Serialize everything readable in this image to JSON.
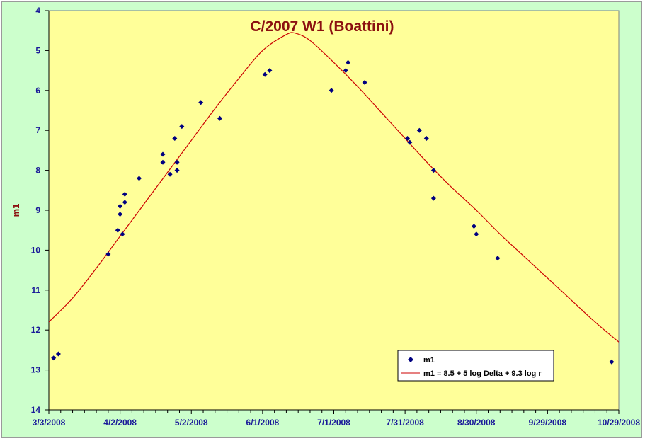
{
  "chart_data": {
    "type": "scatter",
    "title": "C/2007 W1 (Boattini)",
    "ylabel": "m1",
    "xlabel": "",
    "y_inverted": true,
    "ylim": [
      4,
      14
    ],
    "yticks": [
      4,
      5,
      6,
      7,
      8,
      9,
      10,
      11,
      12,
      13,
      14
    ],
    "xlim": [
      "3/3/2008",
      "10/29/2008"
    ],
    "xtick_labels": [
      "3/3/2008",
      "4/2/2008",
      "5/2/2008",
      "6/1/2008",
      "7/1/2008",
      "7/31/2008",
      "8/30/2008",
      "9/29/2008",
      "10/29/2008"
    ],
    "plot_background": "#ffff99",
    "marker_color": "#000080",
    "line_color": "#cc0000",
    "legend_position": "bottom-right",
    "series": [
      {
        "name": "m1",
        "kind": "scatter",
        "points": [
          [
            "3/5/2008",
            12.7
          ],
          [
            "3/7/2008",
            12.6
          ],
          [
            "3/28/2008",
            10.1
          ],
          [
            "4/1/2008",
            9.5
          ],
          [
            "4/2/2008",
            9.1
          ],
          [
            "4/2/2008",
            8.9
          ],
          [
            "4/3/2008",
            9.6
          ],
          [
            "4/4/2008",
            8.8
          ],
          [
            "4/4/2008",
            8.6
          ],
          [
            "4/10/2008",
            8.2
          ],
          [
            "4/20/2008",
            7.6
          ],
          [
            "4/20/2008",
            7.8
          ],
          [
            "4/23/2008",
            8.1
          ],
          [
            "4/25/2008",
            7.2
          ],
          [
            "4/26/2008",
            7.8
          ],
          [
            "4/26/2008",
            8.0
          ],
          [
            "4/28/2008",
            6.9
          ],
          [
            "5/6/2008",
            6.3
          ],
          [
            "5/14/2008",
            6.7
          ],
          [
            "6/2/2008",
            5.6
          ],
          [
            "6/4/2008",
            5.5
          ],
          [
            "6/30/2008",
            6.0
          ],
          [
            "7/6/2008",
            5.5
          ],
          [
            "7/7/2008",
            5.3
          ],
          [
            "7/14/2008",
            5.8
          ],
          [
            "8/1/2008",
            7.2
          ],
          [
            "8/2/2008",
            7.3
          ],
          [
            "8/6/2008",
            7.0
          ],
          [
            "8/9/2008",
            7.2
          ],
          [
            "8/12/2008",
            8.0
          ],
          [
            "8/12/2008",
            8.7
          ],
          [
            "8/29/2008",
            9.4
          ],
          [
            "8/30/2008",
            9.6
          ],
          [
            "9/8/2008",
            10.2
          ],
          [
            "10/26/2008",
            12.8
          ]
        ]
      },
      {
        "name": "m1 = 8.5 + 5 log Delta + 9.3 log r",
        "kind": "line",
        "points": [
          [
            "3/3/2008",
            11.8
          ],
          [
            "3/13/2008",
            11.2
          ],
          [
            "3/23/2008",
            10.45
          ],
          [
            "4/2/2008",
            9.65
          ],
          [
            "4/12/2008",
            8.85
          ],
          [
            "4/22/2008",
            8.05
          ],
          [
            "5/2/2008",
            7.25
          ],
          [
            "5/12/2008",
            6.45
          ],
          [
            "5/22/2008",
            5.7
          ],
          [
            "6/1/2008",
            5.0
          ],
          [
            "6/11/2008",
            4.6
          ],
          [
            "6/15/2008",
            4.57
          ],
          [
            "6/21/2008",
            4.75
          ],
          [
            "7/1/2008",
            5.3
          ],
          [
            "7/11/2008",
            5.9
          ],
          [
            "7/21/2008",
            6.55
          ],
          [
            "7/31/2008",
            7.2
          ],
          [
            "8/10/2008",
            7.85
          ],
          [
            "8/20/2008",
            8.45
          ],
          [
            "8/30/2008",
            9.0
          ],
          [
            "9/9/2008",
            9.6
          ],
          [
            "9/19/2008",
            10.15
          ],
          [
            "9/29/2008",
            10.7
          ],
          [
            "10/9/2008",
            11.25
          ],
          [
            "10/19/2008",
            11.8
          ],
          [
            "10/30/2008",
            12.35
          ]
        ]
      }
    ]
  }
}
